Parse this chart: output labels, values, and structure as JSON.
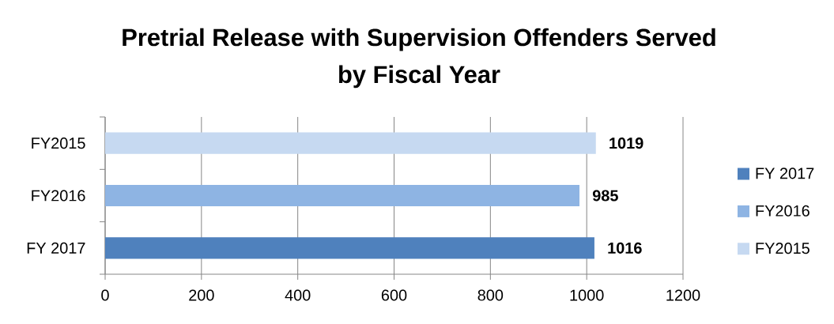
{
  "chart_data": {
    "type": "bar",
    "orientation": "horizontal",
    "stacked": true,
    "title": "Pretrial Release with Supervision Offenders Served by Fiscal Year",
    "categories": [
      "FY2015",
      "FY2016",
      "FY 2017"
    ],
    "series": [
      {
        "name": "FY 2017",
        "color": "#4f81bd",
        "values": [
          null,
          null,
          1016
        ]
      },
      {
        "name": "FY2016",
        "color": "#8eb4e3",
        "values": [
          null,
          985,
          null
        ]
      },
      {
        "name": "FY2015",
        "color": "#c6d9f1",
        "values": [
          1019,
          null,
          null
        ]
      }
    ],
    "xlim": [
      0,
      1200
    ],
    "xticks": [
      0,
      200,
      400,
      600,
      800,
      1000,
      1200
    ],
    "grid": "x",
    "legend": "right",
    "data_labels": true
  }
}
